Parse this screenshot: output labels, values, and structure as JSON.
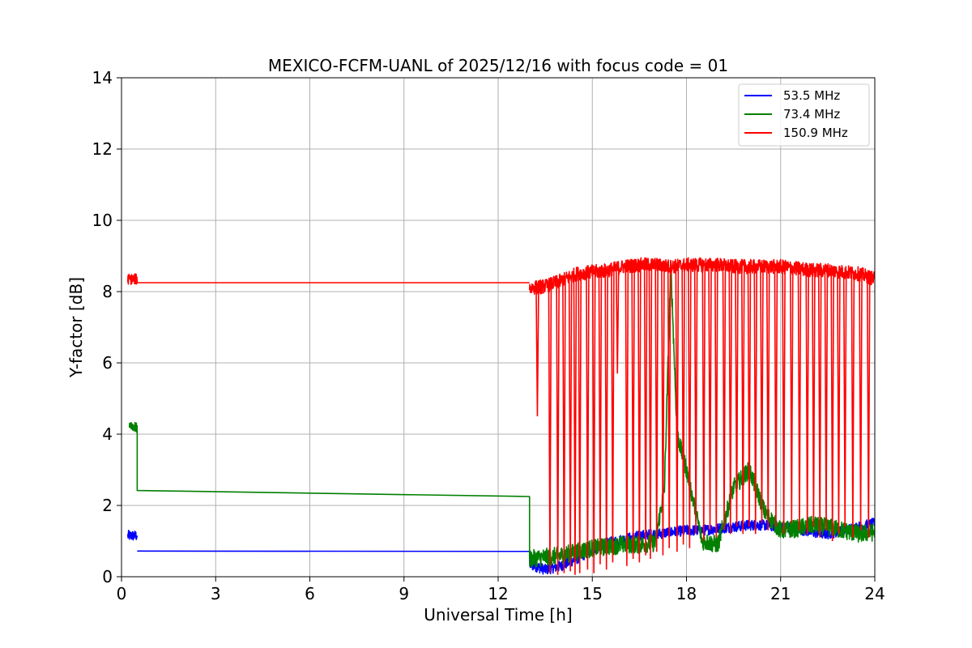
{
  "chart_data": {
    "type": "line",
    "title": "MEXICO-FCFM-UANL of 2025/12/16 with focus code = 01",
    "xlabel": "Universal Time [h]",
    "ylabel": "Y-factor [dB]",
    "xlim": [
      0,
      24
    ],
    "ylim": [
      0,
      14
    ],
    "xticks": [
      0,
      3,
      6,
      9,
      12,
      15,
      18,
      21,
      24
    ],
    "yticks": [
      0,
      2,
      4,
      6,
      8,
      10,
      12,
      14
    ],
    "grid": true,
    "legend": "top-right",
    "series": [
      {
        "name": " 53.5 MHz",
        "color": "#0000ff",
        "segments": [
          {
            "x": [
              0.2,
              0.5
            ],
            "y": [
              1.15,
              1.15
            ],
            "noise": 0.15
          },
          {
            "x": [
              0.5,
              13.0
            ],
            "y": [
              0.72,
              0.71
            ],
            "noise": 0
          },
          {
            "x": [
              13.0,
              13.5,
              14.0,
              14.5,
              15.0,
              15.5,
              16.0,
              16.5,
              17.0,
              17.5,
              18.0,
              18.5,
              19.0,
              19.5,
              20.0,
              20.5,
              21.0,
              21.5,
              22.0,
              22.5,
              23.0,
              23.5,
              24.0
            ],
            "y": [
              0.35,
              0.2,
              0.3,
              0.5,
              0.75,
              0.95,
              1.05,
              1.15,
              1.2,
              1.25,
              1.3,
              1.3,
              1.35,
              1.4,
              1.45,
              1.45,
              1.4,
              1.35,
              1.25,
              1.2,
              1.3,
              1.4,
              1.5
            ],
            "noise": 0.15
          }
        ]
      },
      {
        "name": " 73.4 MHz",
        "color": "#008000",
        "segments": [
          {
            "x": [
              0.25,
              0.5
            ],
            "y": [
              4.3,
              4.15
            ],
            "noise": 0.15
          },
          {
            "x": [
              0.5,
              0.5,
              13.0,
              13.0
            ],
            "y": [
              4.15,
              2.42,
              2.25,
              0.5
            ],
            "noise": 0
          },
          {
            "x": [
              13.0,
              13.5,
              14.0,
              14.5,
              15.0,
              15.5,
              16.0,
              16.5,
              17.0,
              17.3,
              17.5,
              17.7,
              18.0,
              18.5,
              19.0,
              19.5,
              20.0,
              20.5,
              21.0,
              21.5,
              22.0,
              22.5,
              23.0,
              23.5,
              24.0
            ],
            "y": [
              0.5,
              0.55,
              0.6,
              0.7,
              0.8,
              0.85,
              0.9,
              0.9,
              0.95,
              2.5,
              8.8,
              4.0,
              3.0,
              1.0,
              0.9,
              2.5,
              3.0,
              1.8,
              1.3,
              1.35,
              1.45,
              1.4,
              1.3,
              1.2,
              1.25
            ],
            "noise": 0.25
          }
        ]
      },
      {
        "name": " 150.9 MHz",
        "color": "#ff0000",
        "segments": [
          {
            "x": [
              0.2,
              0.5
            ],
            "y": [
              8.35,
              8.35
            ],
            "noise": 0.15
          },
          {
            "x": [
              0.5,
              13.0
            ],
            "y": [
              8.25,
              8.25
            ],
            "noise": 0
          },
          {
            "x": [
              13.0,
              13.5,
              14.0,
              14.5,
              15.0,
              15.5,
              16.0,
              16.5,
              17.0,
              17.5,
              18.0,
              18.5,
              19.0,
              19.5,
              20.0,
              20.5,
              21.0,
              21.5,
              22.0,
              22.5,
              23.0,
              23.5,
              24.0
            ],
            "y": [
              8.1,
              8.15,
              8.3,
              8.5,
              8.55,
              8.6,
              8.7,
              8.75,
              8.75,
              8.7,
              8.75,
              8.75,
              8.75,
              8.7,
              8.7,
              8.7,
              8.7,
              8.65,
              8.6,
              8.6,
              8.55,
              8.5,
              8.35
            ],
            "noise": 0.2
          }
        ],
        "drops": [
          {
            "x": 13.25,
            "y": 4.5
          },
          {
            "x": 13.65,
            "y": 0.1
          },
          {
            "x": 13.9,
            "y": 0.05
          },
          {
            "x": 14.1,
            "y": 0.1
          },
          {
            "x": 14.3,
            "y": 0.15
          },
          {
            "x": 14.45,
            "y": 0.05
          },
          {
            "x": 14.6,
            "y": 0.1
          },
          {
            "x": 14.85,
            "y": 0.2
          },
          {
            "x": 15.05,
            "y": 0.1
          },
          {
            "x": 15.25,
            "y": 0.35
          },
          {
            "x": 15.45,
            "y": 0.2
          },
          {
            "x": 15.65,
            "y": 0.4
          },
          {
            "x": 15.8,
            "y": 5.7
          },
          {
            "x": 16.1,
            "y": 0.3
          },
          {
            "x": 16.3,
            "y": 0.5
          },
          {
            "x": 16.5,
            "y": 0.4
          },
          {
            "x": 16.7,
            "y": 0.6
          },
          {
            "x": 16.85,
            "y": 0.5
          },
          {
            "x": 17.05,
            "y": 0.7
          },
          {
            "x": 17.25,
            "y": 0.6
          },
          {
            "x": 17.45,
            "y": 0.8
          },
          {
            "x": 17.7,
            "y": 0.7
          },
          {
            "x": 17.9,
            "y": 0.9
          },
          {
            "x": 18.1,
            "y": 0.8
          },
          {
            "x": 18.3,
            "y": 1.2
          },
          {
            "x": 18.55,
            "y": 1.0
          },
          {
            "x": 18.75,
            "y": 1.3
          },
          {
            "x": 18.95,
            "y": 1.1
          },
          {
            "x": 19.2,
            "y": 1.3
          },
          {
            "x": 19.4,
            "y": 1.2
          },
          {
            "x": 19.6,
            "y": 1.4
          },
          {
            "x": 19.8,
            "y": 1.2
          },
          {
            "x": 20.0,
            "y": 1.4
          },
          {
            "x": 20.2,
            "y": 1.2
          },
          {
            "x": 20.4,
            "y": 1.5
          },
          {
            "x": 20.6,
            "y": 1.3
          },
          {
            "x": 20.85,
            "y": 1.4
          },
          {
            "x": 21.1,
            "y": 1.2
          },
          {
            "x": 21.35,
            "y": 1.5
          },
          {
            "x": 21.6,
            "y": 1.3
          },
          {
            "x": 21.85,
            "y": 1.2
          },
          {
            "x": 22.05,
            "y": 1.4
          },
          {
            "x": 22.25,
            "y": 1.1
          },
          {
            "x": 22.45,
            "y": 1.3
          },
          {
            "x": 22.65,
            "y": 1.0
          },
          {
            "x": 22.85,
            "y": 1.2
          },
          {
            "x": 23.05,
            "y": 1.4
          },
          {
            "x": 23.3,
            "y": 1.1
          },
          {
            "x": 23.55,
            "y": 1.3
          },
          {
            "x": 23.8,
            "y": 1.1
          }
        ]
      }
    ]
  }
}
